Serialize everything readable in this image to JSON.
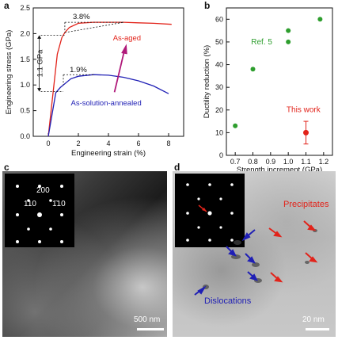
{
  "panels": {
    "a": "a",
    "b": "b",
    "c": "c",
    "d": "d"
  },
  "chart_data": [
    {
      "type": "line",
      "panel": "a",
      "xlabel": "Engineering strain (%)",
      "ylabel": "Engineering stress (GPa)",
      "xlim": [
        -1,
        9
      ],
      "ylim": [
        0,
        2.5
      ],
      "xticks": [
        "0",
        "2",
        "4",
        "6",
        "8"
      ],
      "yticks": [
        "0.0",
        "0.5",
        "1.0",
        "1.5",
        "2.0",
        "2.5"
      ],
      "series": [
        {
          "name": "As-aged",
          "color": "#e2231a",
          "x": [
            0,
            0.6,
            0.9,
            1.1,
            1.4,
            2,
            3,
            4,
            5,
            6,
            7,
            8.2
          ],
          "y": [
            0,
            1.6,
            1.92,
            2.02,
            2.12,
            2.2,
            2.22,
            2.22,
            2.22,
            2.21,
            2.2,
            2.18
          ]
        },
        {
          "name": "As-solution-annealed",
          "color": "#1f1fb5",
          "x": [
            0,
            0.5,
            0.8,
            1.0,
            1.5,
            2,
            3,
            4,
            5,
            6,
            7,
            8.0
          ],
          "y": [
            0,
            0.85,
            0.95,
            1.0,
            1.12,
            1.17,
            1.2,
            1.19,
            1.15,
            1.08,
            0.98,
            0.83
          ]
        }
      ],
      "annotations": [
        "3.8%",
        "1.9%",
        "1.1 GPa"
      ]
    },
    {
      "type": "scatter",
      "panel": "b",
      "xlabel": "Strength increment (GPa)",
      "ylabel": "Ductility reduction (%)",
      "xlim": [
        0.65,
        1.25
      ],
      "ylim": [
        0,
        65
      ],
      "xticks": [
        "0.7",
        "0.8",
        "0.9",
        "1.0",
        "1.1",
        "1.2"
      ],
      "yticks": [
        "0",
        "10",
        "20",
        "30",
        "40",
        "50",
        "60"
      ],
      "series": [
        {
          "name": "Ref. 5",
          "color": "#2e9e2e",
          "x": [
            0.7,
            0.8,
            1.0,
            1.0,
            1.18
          ],
          "y": [
            13,
            38,
            50,
            55,
            60
          ]
        },
        {
          "name": "This work",
          "color": "#e2231a",
          "x": [
            1.1
          ],
          "y": [
            10
          ],
          "yerr": [
            5
          ]
        }
      ]
    }
  ],
  "images": {
    "c": {
      "miller_labels": [
        "200",
        "110",
        "1̄10"
      ],
      "scale_bar": "500 nm"
    },
    "d": {
      "precipitates_label": "Precipitates",
      "dislocations_label": "Dislocations",
      "scale_bar": "20 nm"
    }
  }
}
